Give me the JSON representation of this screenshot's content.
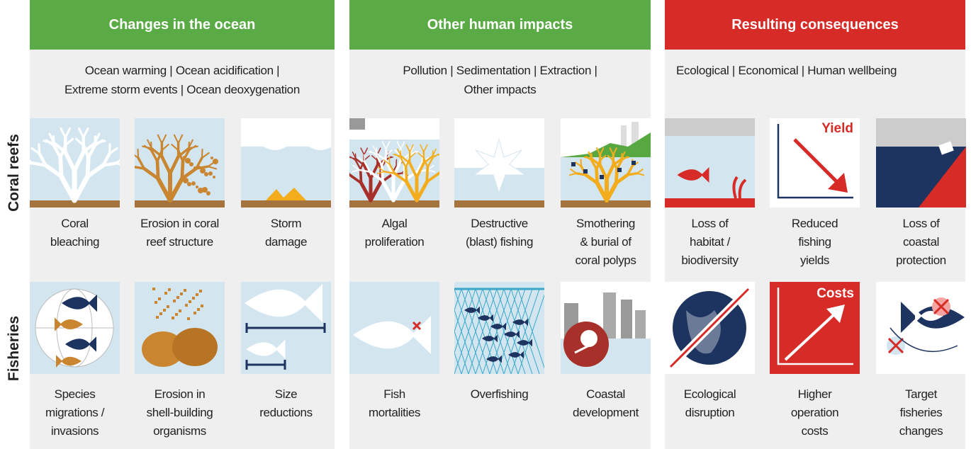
{
  "row_labels": [
    "Coral reefs",
    "Fisheries"
  ],
  "panels": [
    {
      "title": "Changes in the ocean",
      "color": "#5aab46",
      "subtitle": [
        "Ocean warming | Ocean acidification |",
        "Extreme storm events | Ocean deoxygenation"
      ],
      "rows": [
        [
          {
            "caption": [
              "Coral",
              "bleaching"
            ]
          },
          {
            "caption": [
              "Erosion in coral",
              "reef structure"
            ]
          },
          {
            "caption": [
              "Storm",
              "damage"
            ]
          }
        ],
        [
          {
            "caption": [
              "Species",
              "migrations /",
              "invasions"
            ]
          },
          {
            "caption": [
              "Erosion in",
              "shell-building",
              "organisms"
            ]
          },
          {
            "caption": [
              "Size",
              "reductions"
            ]
          }
        ]
      ]
    },
    {
      "title": "Other human impacts",
      "color": "#5aab46",
      "subtitle": [
        "Pollution | Sedimentation | Extraction |",
        "Other impacts"
      ],
      "rows": [
        [
          {
            "caption": [
              "Algal",
              "proliferation"
            ]
          },
          {
            "caption": [
              "Destructive",
              "(blast) fishing"
            ]
          },
          {
            "caption": [
              "Smothering",
              "& burial of",
              "coral polyps"
            ]
          }
        ],
        [
          {
            "caption": [
              "Fish",
              "mortalities"
            ]
          },
          {
            "caption": [
              "Overfishing"
            ]
          },
          {
            "caption": [
              "Coastal",
              "development"
            ]
          }
        ]
      ]
    },
    {
      "title": "Resulting consequences",
      "color": "#d62b27",
      "subtitle": [
        "Ecological | Economical | Human wellbeing"
      ],
      "rows": [
        [
          {
            "caption": [
              "Loss of",
              "habitat /",
              "biodiversity"
            ]
          },
          {
            "caption": [
              "Reduced",
              "fishing",
              "yields"
            ],
            "icon_text": "Yield"
          },
          {
            "caption": [
              "Loss of",
              "coastal",
              "protection"
            ]
          }
        ],
        [
          {
            "caption": [
              "Ecological",
              "disruption"
            ]
          },
          {
            "caption": [
              "Higher",
              "operation",
              "costs"
            ],
            "icon_text": "Costs"
          },
          {
            "caption": [
              "Target",
              "fisheries",
              "changes"
            ]
          }
        ]
      ]
    }
  ]
}
